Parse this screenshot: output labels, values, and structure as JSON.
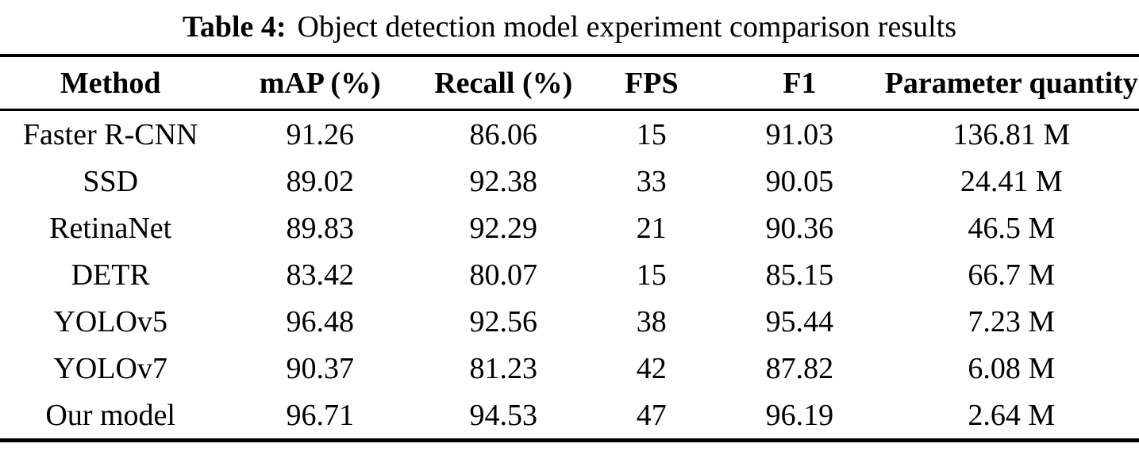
{
  "title": {
    "prefix": "Table 4:",
    "text": "Object detection model experiment comparison results"
  },
  "table": {
    "headers": [
      "Method",
      "mAP (%)",
      "Recall (%)",
      "FPS",
      "F1",
      "Parameter quantity"
    ],
    "rows": [
      [
        "Faster R-CNN",
        "91.26",
        "86.06",
        "15",
        "91.03",
        "136.81 M"
      ],
      [
        "SSD",
        "89.02",
        "92.38",
        "33",
        "90.05",
        "24.41 M"
      ],
      [
        "RetinaNet",
        "89.83",
        "92.29",
        "21",
        "90.36",
        "46.5 M"
      ],
      [
        "DETR",
        "83.42",
        "80.07",
        "15",
        "85.15",
        "66.7 M"
      ],
      [
        "YOLOv5",
        "96.48",
        "92.56",
        "38",
        "95.44",
        "7.23 M"
      ],
      [
        "YOLOv7",
        "90.37",
        "81.23",
        "42",
        "87.82",
        "6.08 M"
      ],
      [
        "Our model",
        "96.71",
        "94.53",
        "47",
        "96.19",
        "2.64 M"
      ]
    ]
  },
  "colors": {
    "text": "#000000",
    "background": "#ffffff",
    "rule": "#000000"
  }
}
